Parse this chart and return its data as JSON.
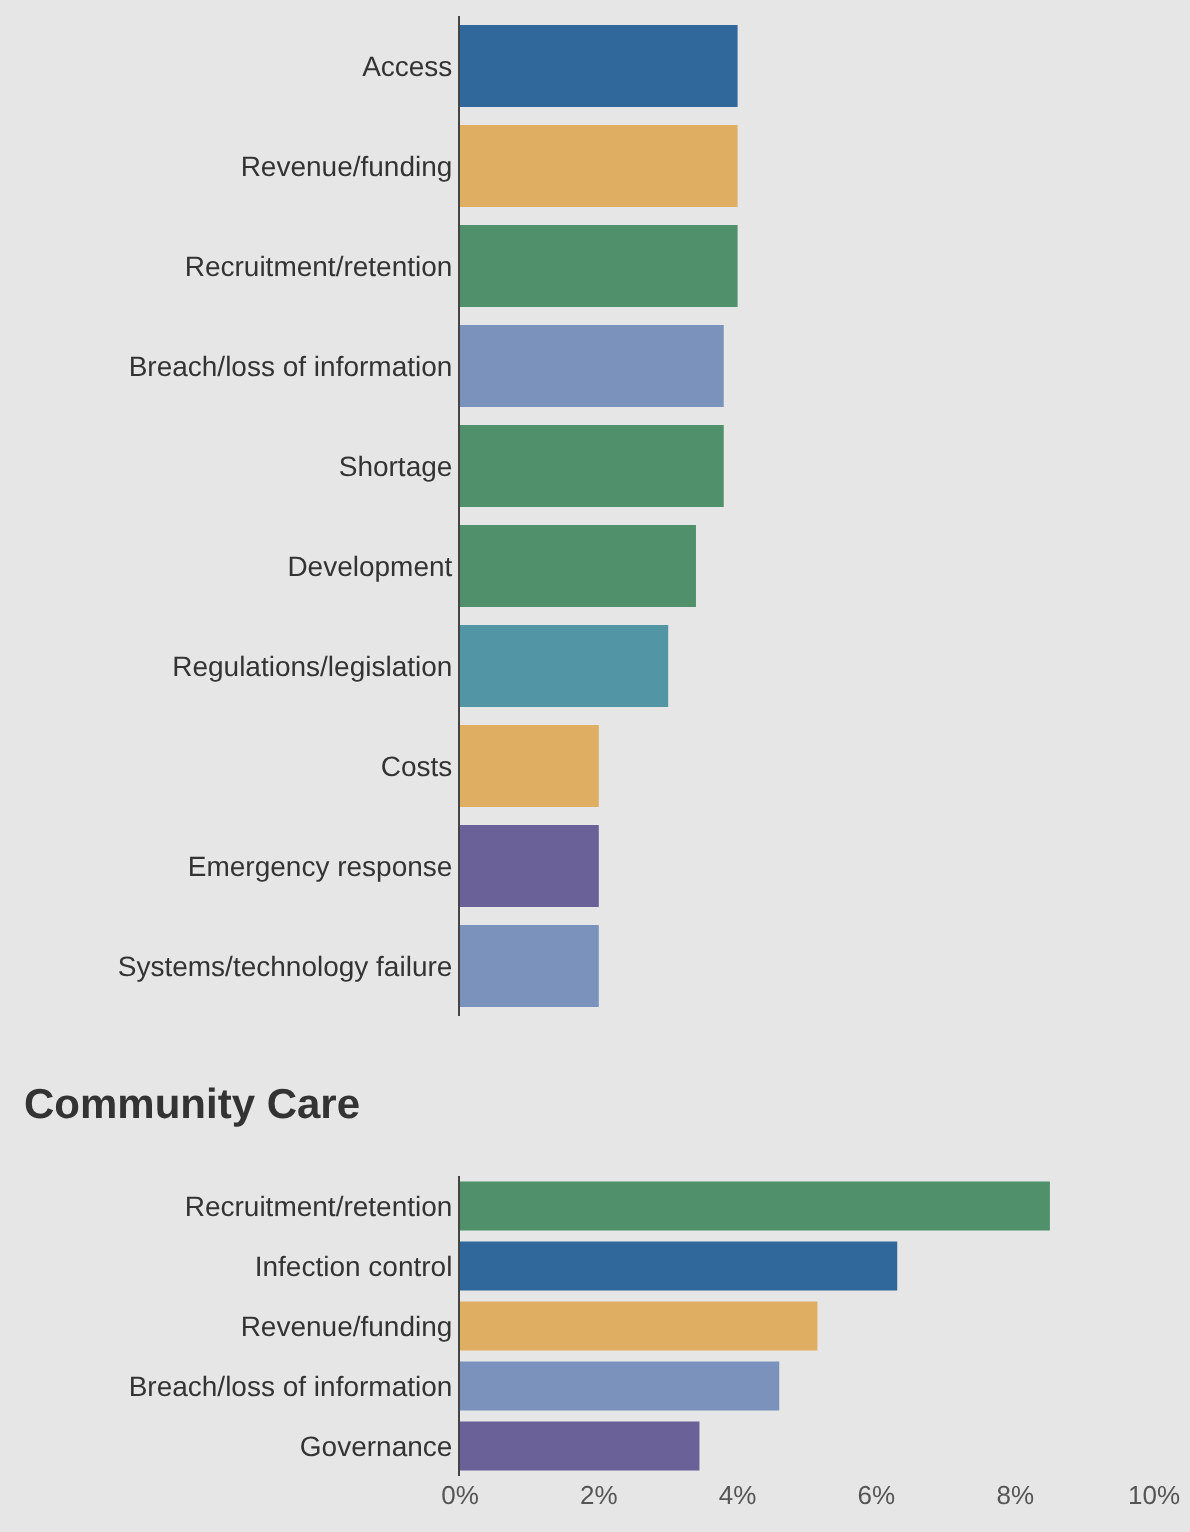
{
  "chart_data": [
    {
      "type": "bar",
      "orientation": "horizontal",
      "categories": [
        "Access",
        "Revenue/funding",
        "Recruitment/retention",
        "Breach/loss of information",
        "Shortage",
        "Development",
        "Regulations/legislation",
        "Costs",
        "Emergency response",
        "Systems/technology failure"
      ],
      "values": [
        4.0,
        4.0,
        4.0,
        3.8,
        3.8,
        3.4,
        3.0,
        2.0,
        2.0,
        2.0
      ],
      "colors": [
        "#31689b",
        "#dfae62",
        "#50906a",
        "#7b93bc",
        "#50906a",
        "#50906a",
        "#5296a5",
        "#dfae62",
        "#6a6198",
        "#7b93bc"
      ],
      "xlim": [
        0,
        10
      ],
      "tick_labels": "y",
      "grid": false
    },
    {
      "type": "bar",
      "orientation": "horizontal",
      "title": "Community Care",
      "categories": [
        "Recruitment/retention",
        "Infection control",
        "Revenue/funding",
        "Breach/loss of information",
        "Governance"
      ],
      "values": [
        8.5,
        6.3,
        5.15,
        4.6,
        3.45
      ],
      "colors": [
        "#50906a",
        "#31689b",
        "#dfae62",
        "#7b93bc",
        "#6a6198"
      ],
      "xlim": [
        0,
        10
      ],
      "xticks": [
        {
          "value": 0,
          "label": "0%"
        },
        {
          "value": 2,
          "label": "2%"
        },
        {
          "value": 4,
          "label": "4%"
        },
        {
          "value": 6,
          "label": "6%"
        },
        {
          "value": 8,
          "label": "8%"
        },
        {
          "value": 10,
          "label": "10%"
        }
      ],
      "grid": false
    }
  ]
}
